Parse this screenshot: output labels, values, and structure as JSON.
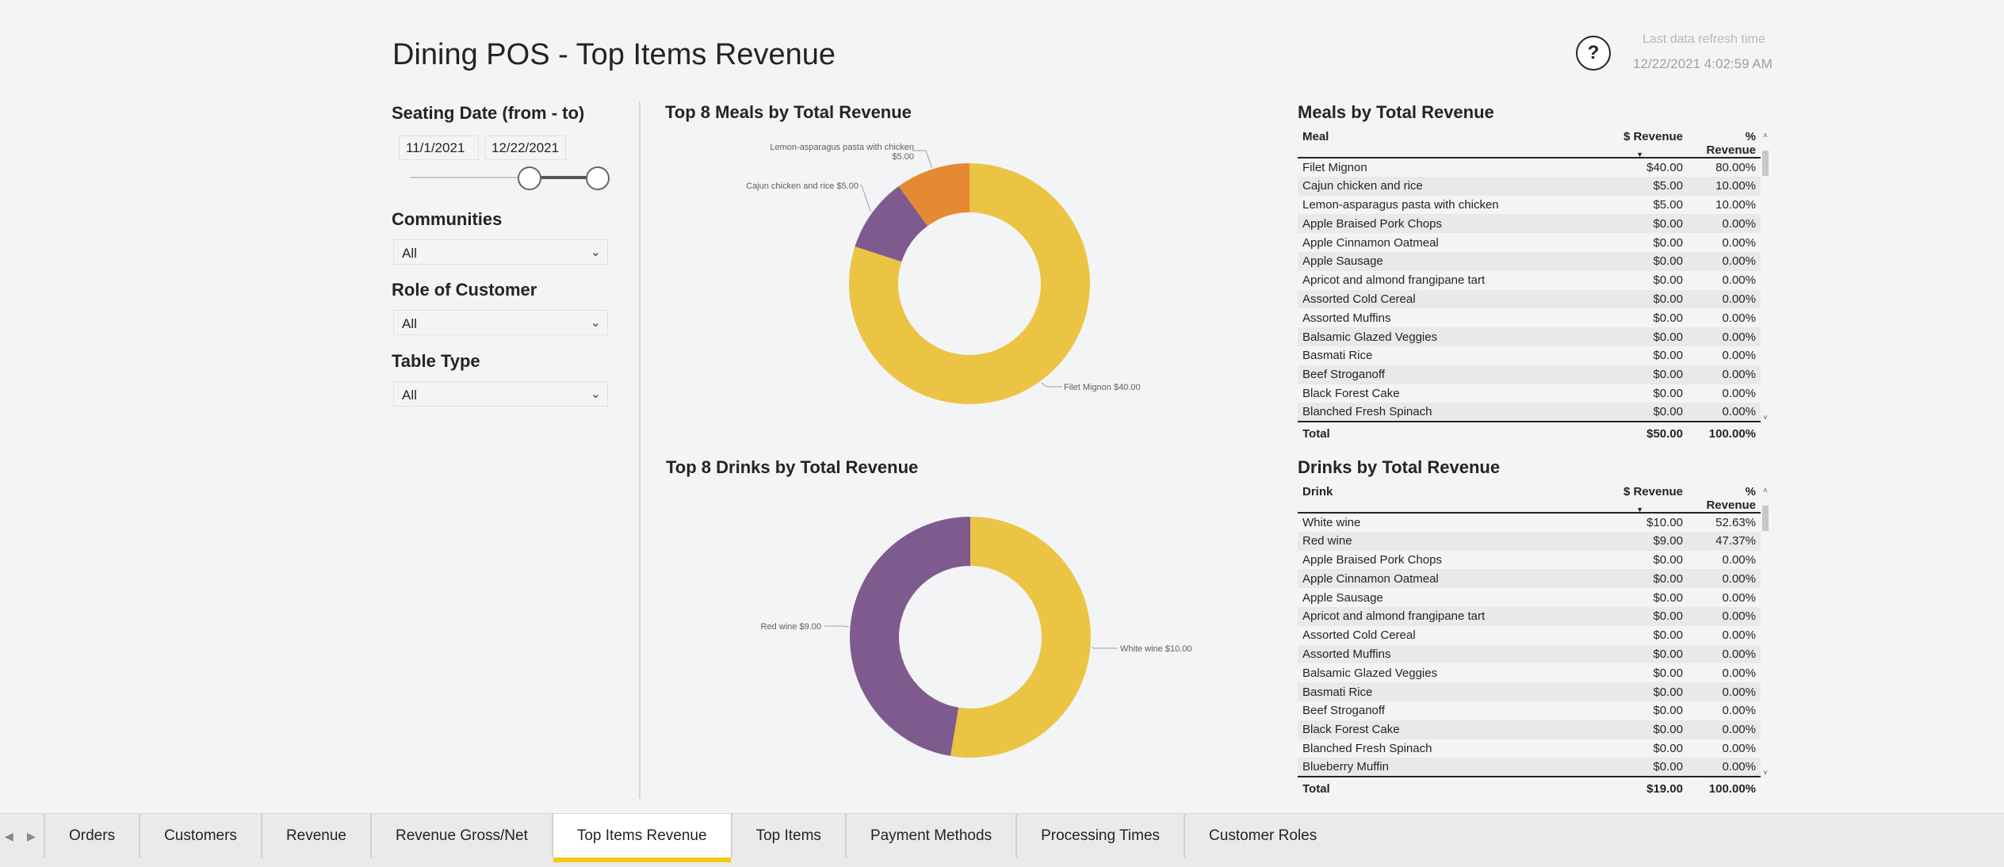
{
  "header": {
    "title": "Dining POS - Top Items Revenue",
    "help_label": "?",
    "refresh_label": "Last data refresh time",
    "refresh_time": "12/22/2021 4:02:59 AM"
  },
  "slicers": {
    "seating_date": {
      "title": "Seating Date (from - to)",
      "from": "11/1/2021",
      "to": "12/22/2021"
    },
    "communities": {
      "title": "Communities",
      "value": "All"
    },
    "role": {
      "title": "Role of Customer",
      "value": "All"
    },
    "table_type": {
      "title": "Table Type",
      "value": "All"
    }
  },
  "colors": {
    "yellow": "#ecc444",
    "purple": "#7f5a8f",
    "orange": "#e58a33",
    "accent": "#f2c811"
  },
  "chart_data": [
    {
      "type": "pie",
      "title": "Top 8 Meals by Total Revenue",
      "slices": [
        {
          "label": "Filet Mignon $40.00",
          "value": 40,
          "color": "#ecc444"
        },
        {
          "label": "Cajun chicken and rice $5.00",
          "value": 5,
          "color": "#7f5a8f"
        },
        {
          "label_line1": "Lemon-asparagus pasta with chicken",
          "label_line2": "$5.00",
          "value": 5,
          "color": "#e58a33"
        }
      ]
    },
    {
      "type": "pie",
      "title": "Top 8 Drinks by Total Revenue",
      "slices": [
        {
          "label": "White wine $10.00",
          "value": 10,
          "color": "#ecc444"
        },
        {
          "label": "Red wine $9.00",
          "value": 9,
          "color": "#7f5a8f"
        }
      ]
    }
  ],
  "meals_table": {
    "title": "Meals by Total Revenue",
    "headers": [
      "Meal",
      "$ Revenue",
      "% Revenue"
    ],
    "rows": [
      [
        "Filet Mignon",
        "$40.00",
        "80.00%"
      ],
      [
        "Cajun chicken and rice",
        "$5.00",
        "10.00%"
      ],
      [
        "Lemon-asparagus pasta with chicken",
        "$5.00",
        "10.00%"
      ],
      [
        "Apple Braised Pork Chops",
        "$0.00",
        "0.00%"
      ],
      [
        "Apple Cinnamon Oatmeal",
        "$0.00",
        "0.00%"
      ],
      [
        "Apple Sausage",
        "$0.00",
        "0.00%"
      ],
      [
        "Apricot and almond frangipane tart",
        "$0.00",
        "0.00%"
      ],
      [
        "Assorted Cold Cereal",
        "$0.00",
        "0.00%"
      ],
      [
        "Assorted Muffins",
        "$0.00",
        "0.00%"
      ],
      [
        "Balsamic Glazed Veggies",
        "$0.00",
        "0.00%"
      ],
      [
        "Basmati Rice",
        "$0.00",
        "0.00%"
      ],
      [
        "Beef Stroganoff",
        "$0.00",
        "0.00%"
      ],
      [
        "Black Forest Cake",
        "$0.00",
        "0.00%"
      ],
      [
        "Blanched Fresh Spinach",
        "$0.00",
        "0.00%"
      ]
    ],
    "total": [
      "Total",
      "$50.00",
      "100.00%"
    ]
  },
  "drinks_table": {
    "title": "Drinks by Total Revenue",
    "headers": [
      "Drink",
      "$ Revenue",
      "% Revenue"
    ],
    "rows": [
      [
        "White wine",
        "$10.00",
        "52.63%"
      ],
      [
        "Red wine",
        "$9.00",
        "47.37%"
      ],
      [
        "Apple Braised Pork Chops",
        "$0.00",
        "0.00%"
      ],
      [
        "Apple Cinnamon Oatmeal",
        "$0.00",
        "0.00%"
      ],
      [
        "Apple Sausage",
        "$0.00",
        "0.00%"
      ],
      [
        "Apricot and almond frangipane tart",
        "$0.00",
        "0.00%"
      ],
      [
        "Assorted Cold Cereal",
        "$0.00",
        "0.00%"
      ],
      [
        "Assorted Muffins",
        "$0.00",
        "0.00%"
      ],
      [
        "Balsamic Glazed Veggies",
        "$0.00",
        "0.00%"
      ],
      [
        "Basmati Rice",
        "$0.00",
        "0.00%"
      ],
      [
        "Beef Stroganoff",
        "$0.00",
        "0.00%"
      ],
      [
        "Black Forest Cake",
        "$0.00",
        "0.00%"
      ],
      [
        "Blanched Fresh Spinach",
        "$0.00",
        "0.00%"
      ],
      [
        "Blueberry Muffin",
        "$0.00",
        "0.00%"
      ]
    ],
    "total": [
      "Total",
      "$19.00",
      "100.00%"
    ]
  },
  "tabs": [
    "Orders",
    "Customers",
    "Revenue",
    "Revenue Gross/Net",
    "Top Items Revenue",
    "Top Items",
    "Payment Methods",
    "Processing Times",
    "Customer Roles"
  ],
  "active_tab": "Top Items Revenue",
  "icons": {
    "prev": "chevron-left-icon",
    "next": "chevron-right-icon",
    "dropdown": "chevron-down-icon"
  }
}
